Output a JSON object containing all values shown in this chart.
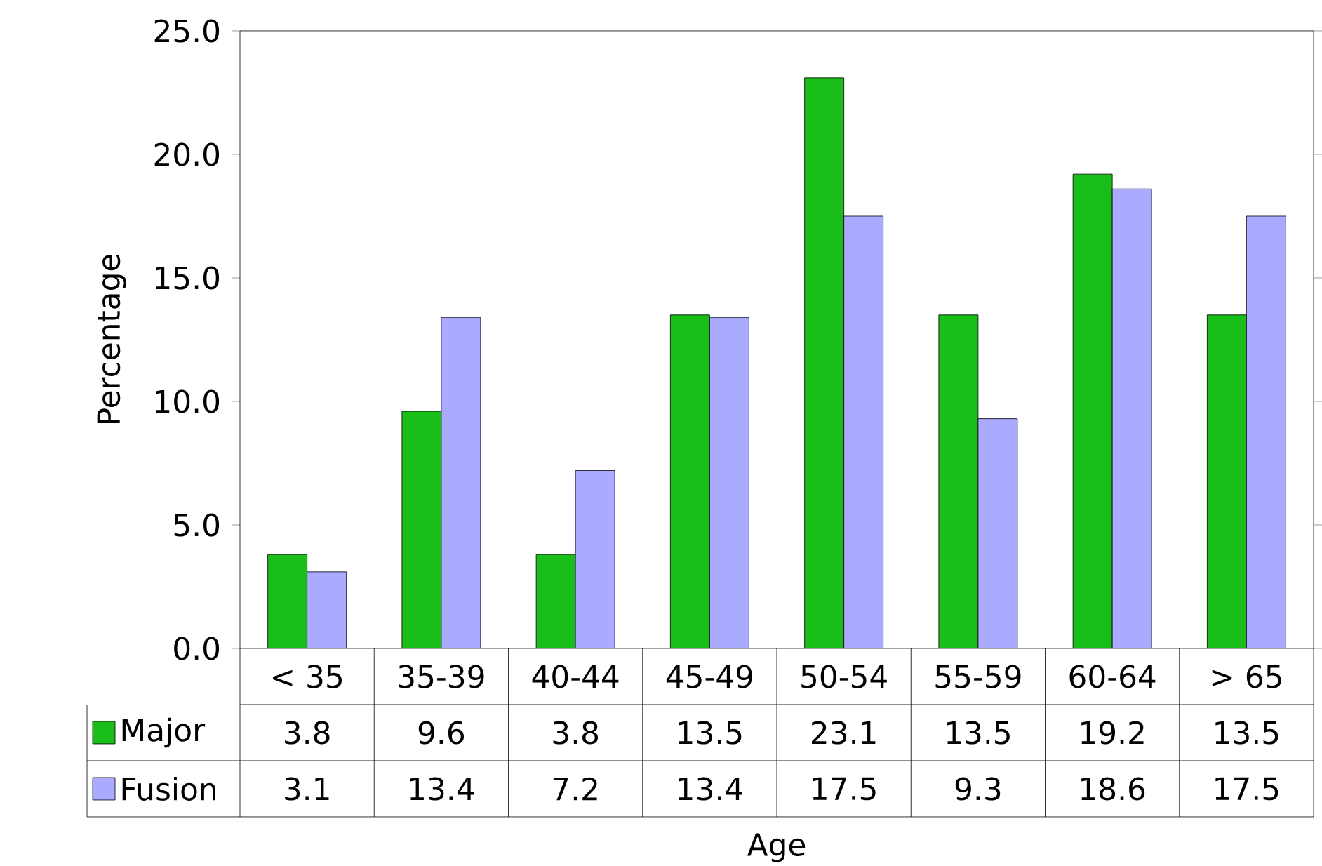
{
  "chart_data": {
    "type": "bar",
    "xlabel": "Age",
    "ylabel": "Percentage",
    "categories": [
      "< 35",
      "35-39",
      "40-44",
      "45-49",
      "50-54",
      "55-59",
      "60-64",
      "> 65"
    ],
    "series": [
      {
        "name": "Major",
        "color": "#19be19",
        "values": [
          3.8,
          9.6,
          3.8,
          13.5,
          23.1,
          13.5,
          19.2,
          13.5
        ]
      },
      {
        "name": "Fusion",
        "color": "#aaaaff",
        "values": [
          3.1,
          13.4,
          7.2,
          13.4,
          17.5,
          9.3,
          18.6,
          17.5
        ]
      }
    ],
    "ylim": [
      0,
      25
    ],
    "yticks": [
      {
        "value": 0,
        "label": "0.0"
      },
      {
        "value": 5,
        "label": "5.0"
      },
      {
        "value": 10,
        "label": "10.0"
      },
      {
        "value": 15,
        "label": "15.0"
      },
      {
        "value": 20,
        "label": "20.0"
      },
      {
        "value": 25,
        "label": "25.0"
      }
    ],
    "data_labels": true,
    "legend": "bottom left",
    "grid": false
  }
}
